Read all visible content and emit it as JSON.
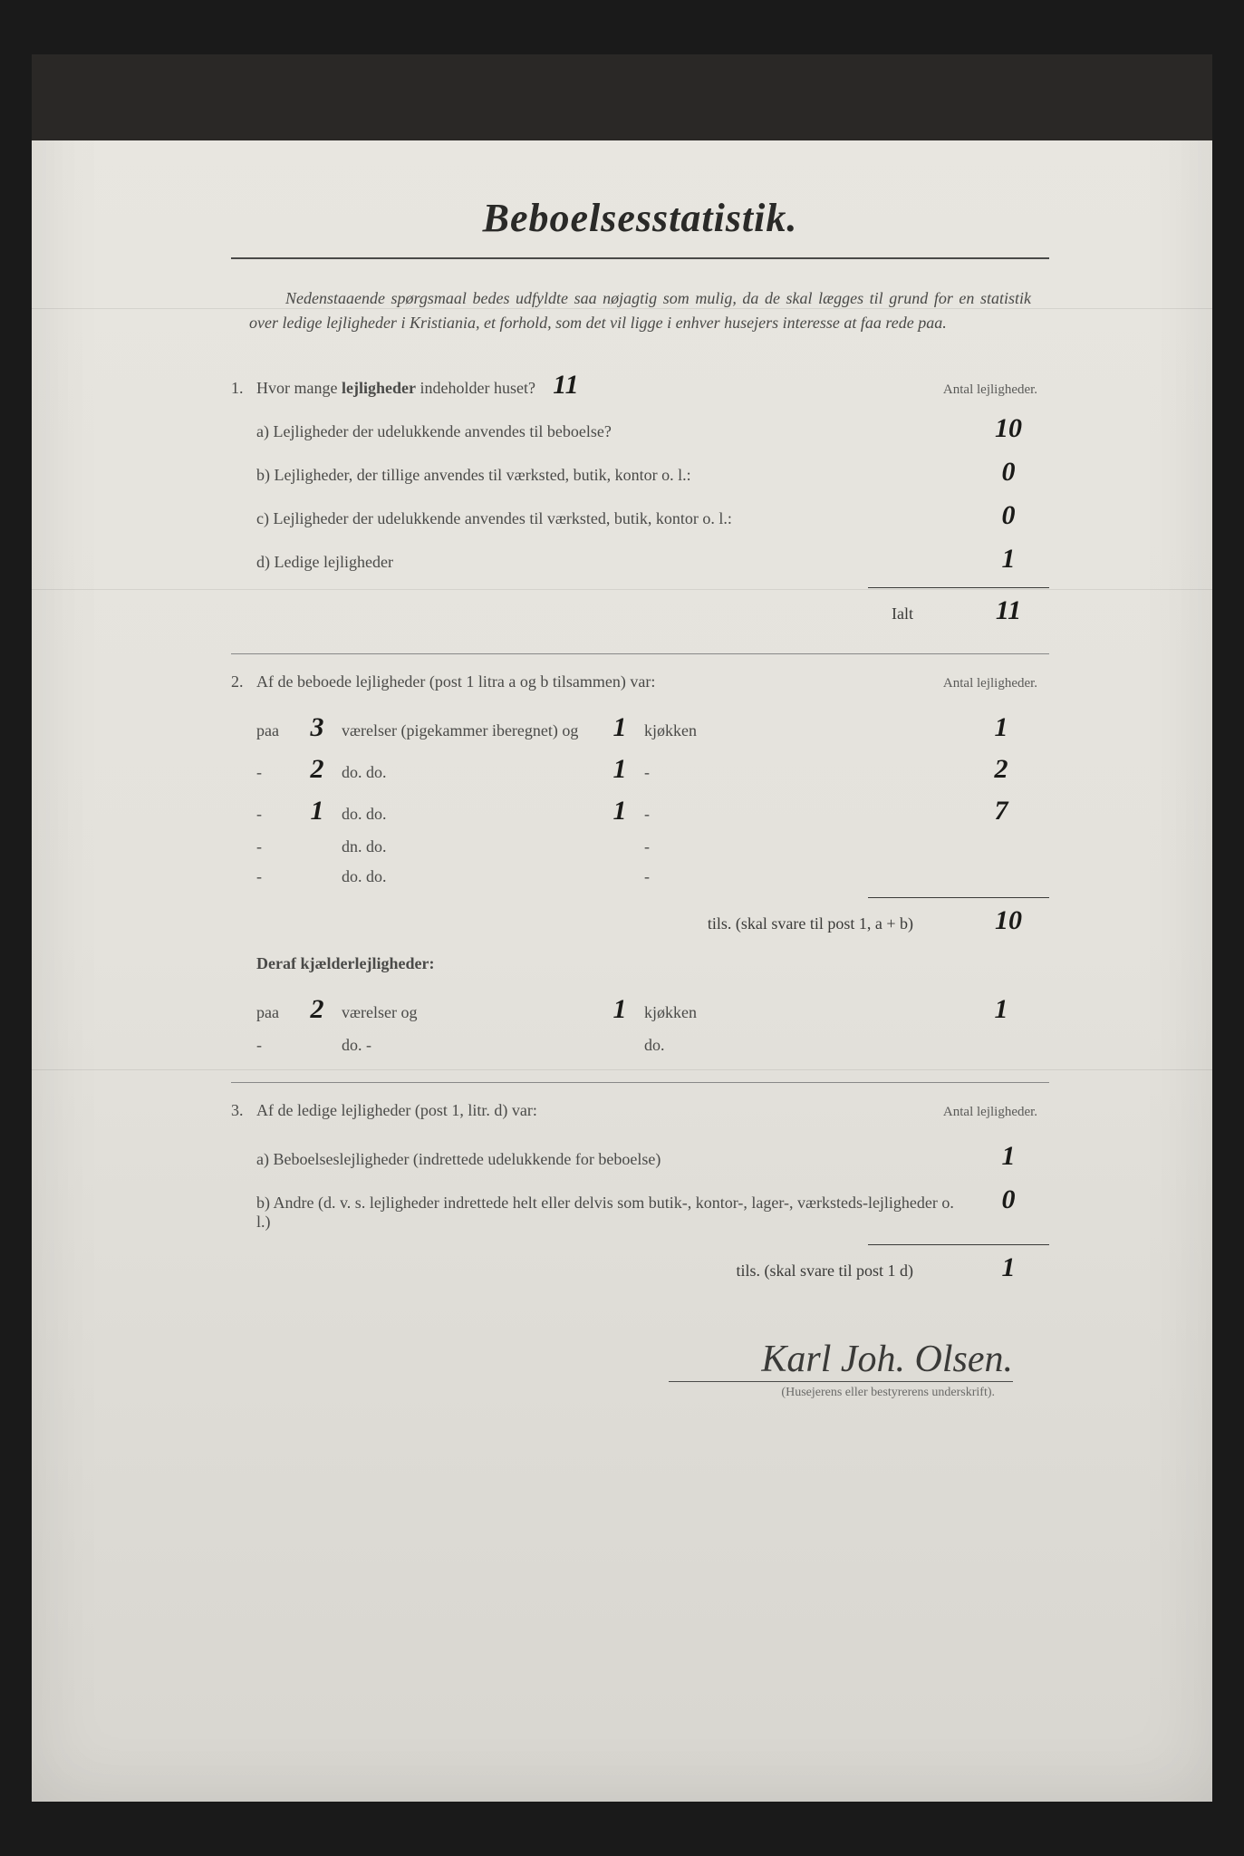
{
  "title": "Beboelsesstatistik.",
  "intro": "Nedenstaaende spørgsmaal bedes udfyldte saa nøjagtig som mulig, da de skal lægges til grund for en statistik over ledige lejligheder i Kristiania, et forhold, som det vil ligge i enhver husejers interesse at faa rede paa.",
  "q1": {
    "num": "1.",
    "text_a": "Hvor mange ",
    "text_b": "lejligheder",
    "text_c": " indeholder huset?",
    "value": "11",
    "col_header": "Antal lejligheder.",
    "a": {
      "label": "a) Lejligheder der udelukkende anvendes til beboelse?",
      "value": "10"
    },
    "b": {
      "label": "b) Lejligheder, der tillige anvendes til værksted, butik, kontor o. l.:",
      "value": "0"
    },
    "c": {
      "label": "c) Lejligheder der udelukkende anvendes til værksted, butik, kontor o. l.:",
      "value": "0"
    },
    "d": {
      "label": "d) Ledige lejligheder",
      "value": "1"
    },
    "sum_label": "Ialt",
    "sum_value": "11"
  },
  "q2": {
    "num": "2.",
    "text": "Af de beboede lejligheder (post 1 litra a og b tilsammen) var:",
    "col_header": "Antal lejligheder.",
    "rows": [
      {
        "prefix": "paa",
        "rooms": "3",
        "mid1": "værelser (pigekammer iberegnet) og",
        "kitchens": "1",
        "mid2": "kjøkken",
        "count": "1"
      },
      {
        "prefix": "-",
        "rooms": "2",
        "mid1": "do.              do.",
        "kitchens": "1",
        "mid2": "-",
        "count": "2"
      },
      {
        "prefix": "-",
        "rooms": "1",
        "mid1": "do.              do.",
        "kitchens": "1",
        "mid2": "-",
        "count": "7"
      },
      {
        "prefix": "-",
        "rooms": "",
        "mid1": "dn.              do.",
        "kitchens": "",
        "mid2": "-",
        "count": ""
      },
      {
        "prefix": "-",
        "rooms": "",
        "mid1": "do.              do.",
        "kitchens": "",
        "mid2": "-",
        "count": ""
      }
    ],
    "tils_label": "tils. (skal svare til post 1, a + b)",
    "tils_value": "10",
    "basement_header": "Deraf kjælderlejligheder:",
    "basement_rows": [
      {
        "prefix": "paa",
        "rooms": "2",
        "mid1": "værelser og",
        "kitchens": "1",
        "mid2": "kjøkken",
        "count": "1"
      },
      {
        "prefix": "-",
        "rooms": "",
        "mid1": "do.       -",
        "kitchens": "",
        "mid2": "do.",
        "count": ""
      }
    ]
  },
  "q3": {
    "num": "3.",
    "text": "Af de ledige lejligheder (post 1, litr. d) var:",
    "col_header": "Antal lejligheder.",
    "a": {
      "label": "a) Beboelseslejligheder (indrettede udelukkende for beboelse)",
      "value": "1"
    },
    "b": {
      "label": "b) Andre (d. v. s. lejligheder indrettede helt eller delvis som butik-, kontor-, lager-, værksteds-lejligheder o. l.)",
      "value": "0"
    },
    "tils_label": "tils. (skal svare til post 1 d)",
    "tils_value": "1"
  },
  "signature": "Karl Joh. Olsen.",
  "sig_caption": "(Husejerens eller bestyrerens underskrift)."
}
